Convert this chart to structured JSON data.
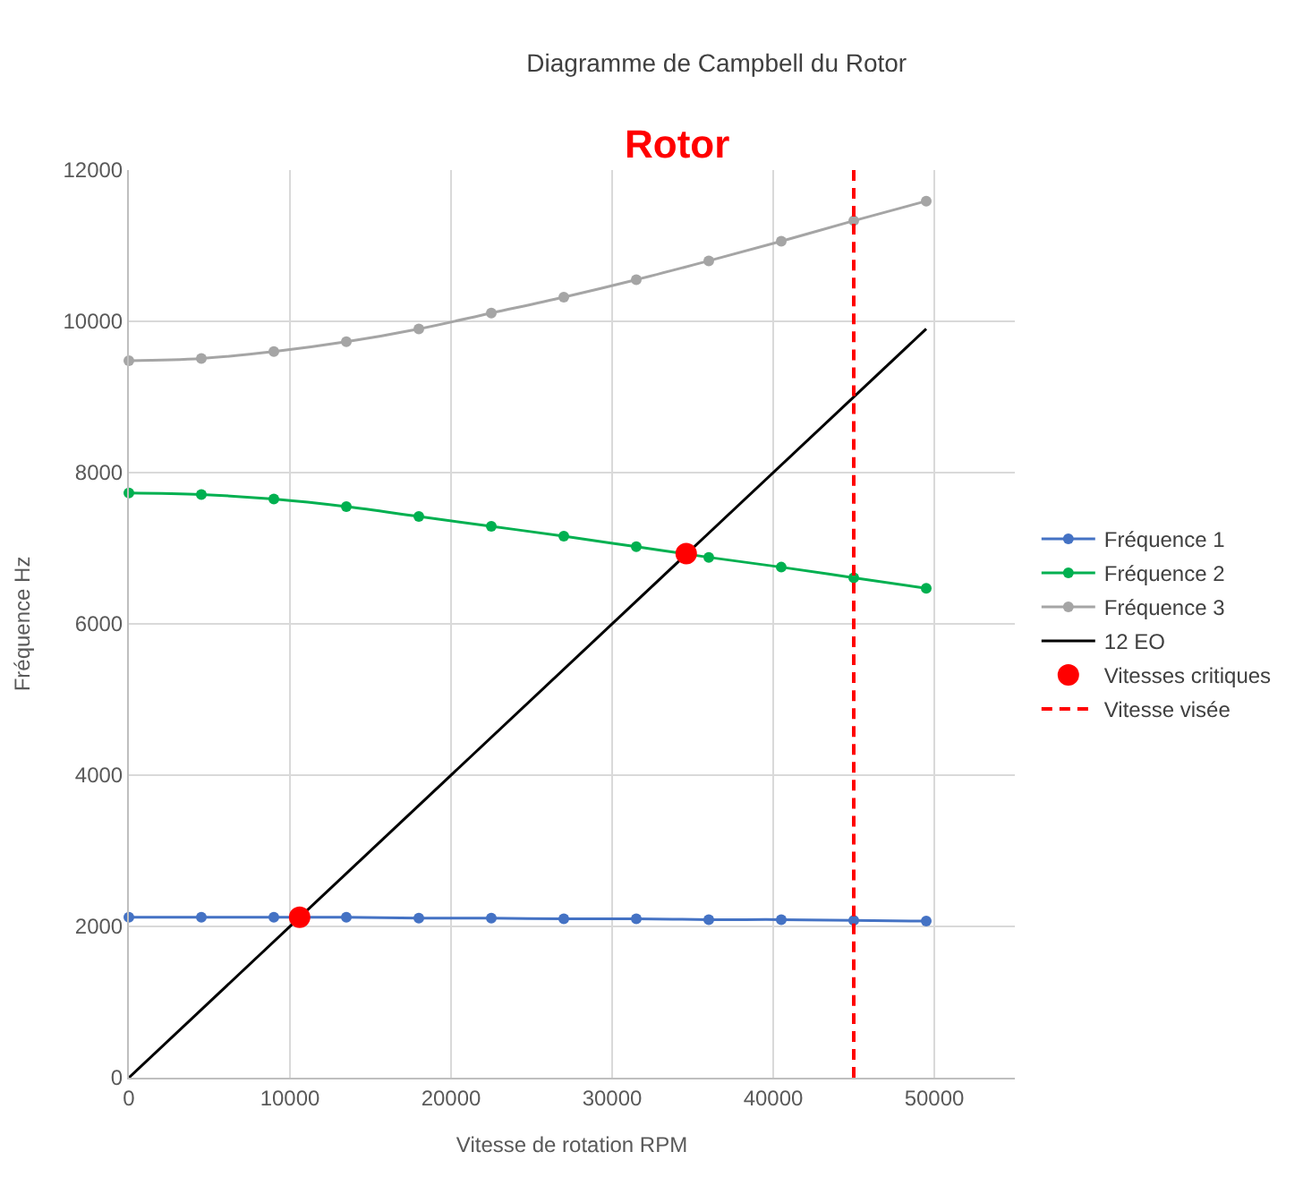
{
  "chart_data": {
    "type": "line",
    "title": "Diagramme de Campbell du Rotor",
    "xlabel": "Vitesse de rotation RPM",
    "ylabel": "Fréquence Hz",
    "annotations": [
      "Rotor"
    ],
    "x": [
      0,
      4500,
      9000,
      13500,
      18000,
      22500,
      27000,
      31500,
      36000,
      40500,
      45000,
      49500
    ],
    "series": [
      {
        "name": "Fréquence 1",
        "color": "#4472c4",
        "marker": "circle",
        "values": [
          2120,
          2120,
          2120,
          2120,
          2110,
          2110,
          2100,
          2100,
          2090,
          2090,
          2080,
          2070
        ]
      },
      {
        "name": "Fréquence 2",
        "color": "#00b050",
        "marker": "circle",
        "values": [
          7730,
          7710,
          7650,
          7550,
          7420,
          7290,
          7160,
          7020,
          6880,
          6750,
          6610,
          6470
        ]
      },
      {
        "name": "Fréquence 3",
        "color": "#a5a5a5",
        "marker": "circle",
        "values": [
          9480,
          9510,
          9600,
          9730,
          9900,
          10110,
          10320,
          10550,
          10800,
          11060,
          11330,
          11590
        ]
      },
      {
        "name": "12 EO",
        "color": "#000000",
        "marker": "none",
        "x": [
          0,
          49500
        ],
        "values": [
          0,
          9900
        ]
      },
      {
        "name": "Vitesses critiques",
        "type": "scatter",
        "color": "#ff0000",
        "marker": "circle",
        "x": [
          10600,
          34600
        ],
        "values": [
          2120,
          6930
        ]
      },
      {
        "name": "Vitesse visée",
        "color": "#ff0000",
        "marker": "none",
        "line_style": "dashed",
        "x": [
          45000,
          45000
        ],
        "values": [
          0,
          12000
        ]
      }
    ],
    "xlim": [
      0,
      55000
    ],
    "xticks": [
      0,
      10000,
      20000,
      30000,
      40000,
      50000
    ],
    "ylim": [
      0,
      12000
    ],
    "yticks": [
      0,
      2000,
      4000,
      6000,
      8000,
      10000,
      12000
    ],
    "grid": true,
    "legend": "right"
  }
}
